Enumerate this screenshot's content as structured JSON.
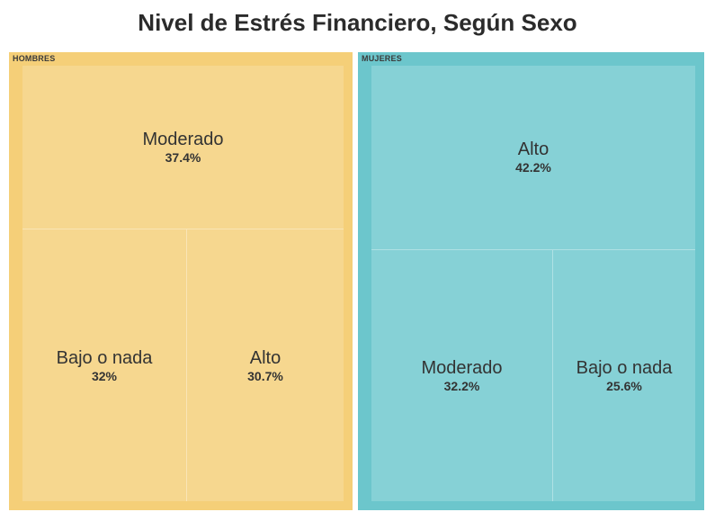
{
  "chart_data": {
    "type": "treemap",
    "title": "Nivel de Estrés Financiero, Según Sexo",
    "groups": [
      {
        "name": "HOMBRES",
        "color": "#f5cf78",
        "tile_color": "#f6d78f",
        "items": [
          {
            "label": "Moderado",
            "value": 37.4,
            "value_label": "37.4%"
          },
          {
            "label": "Bajo o nada",
            "value": 32,
            "value_label": "32%"
          },
          {
            "label": "Alto",
            "value": 30.7,
            "value_label": "30.7%"
          }
        ]
      },
      {
        "name": "MUJERES",
        "color": "#6cc6cc",
        "tile_color": "#86d1d6",
        "items": [
          {
            "label": "Alto",
            "value": 42.2,
            "value_label": "42.2%"
          },
          {
            "label": "Moderado",
            "value": 32.2,
            "value_label": "32.2%"
          },
          {
            "label": "Bajo o nada",
            "value": 25.6,
            "value_label": "25.6%"
          }
        ]
      }
    ]
  }
}
